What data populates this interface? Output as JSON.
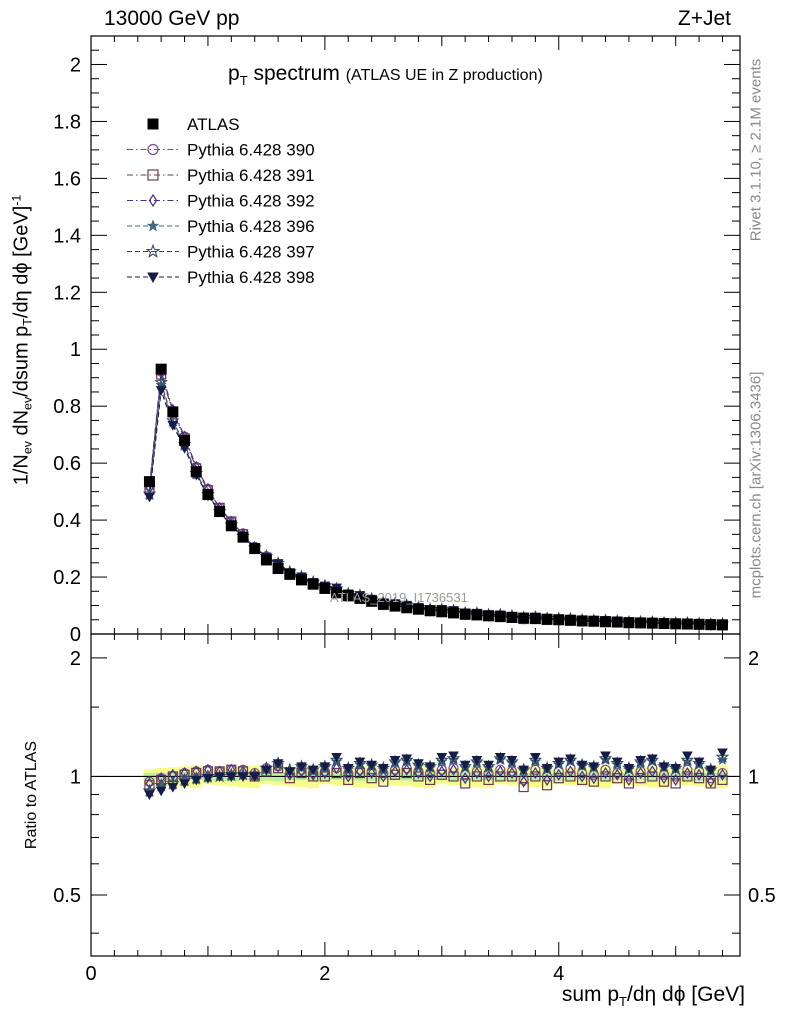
{
  "header": {
    "energy_label": "13000 GeV pp",
    "process_label": "Z+Jet"
  },
  "side": {
    "rivet_label": "Rivet 3.1.10, ≥ 2.1M events",
    "mcplots_label": "mcplots.cern.ch [arXiv:1306.3436]"
  },
  "watermark": "ATLAS_2019_I1736531",
  "title": {
    "p": "p",
    "sub": "T",
    "main": " spectrum",
    "paren": "(ATLAS UE in Z production)"
  },
  "ylabel_top": {
    "a": "1/N",
    "a_sub": "ev",
    "b": " dN",
    "b_sub": "ev",
    "c": "/dsum p",
    "c_sub": "T",
    "d": "/dη dϕ  [GeV]",
    "d_sup": "-1"
  },
  "ylabel_bottom": "Ratio to ATLAS",
  "xlabel": {
    "a": "sum p",
    "a_sub": "T",
    "b": "/dη dϕ [GeV]"
  },
  "colors": {
    "data": "#000000",
    "s390": "#7a4a8f",
    "s391": "#6b3b4b",
    "s392": "#4b2e8f",
    "s396": "#3e6a82",
    "s397": "#2f4a64",
    "s398": "#161c47",
    "band_green": "#b6f0a0",
    "band_yellow": "#f7fc8a"
  },
  "chart_data": {
    "type": "scatter",
    "top_panel": {
      "xlim": [
        0,
        5.55
      ],
      "ylim": [
        0,
        2.1
      ],
      "yticks": [
        0,
        0.2,
        0.4,
        0.6,
        0.8,
        1,
        1.2,
        1.4,
        1.6,
        1.8,
        2
      ],
      "ytick_labels": [
        "0",
        "0.2",
        "0.4",
        "0.6",
        "0.8",
        "1",
        "1.2",
        "1.4",
        "1.6",
        "1.8",
        "2"
      ],
      "legend_position": "top-left"
    },
    "ratio_panel": {
      "xlim": [
        0,
        5.55
      ],
      "ylim": [
        0.35,
        2.3
      ],
      "log_scale": true,
      "yticks": [
        0.5,
        1,
        2
      ],
      "ytick_labels": [
        "0.5",
        "1",
        "2"
      ],
      "reference_line": 1
    },
    "xticks": [
      0,
      2,
      4
    ],
    "xtick_labels": [
      "0",
      "2",
      "4"
    ],
    "x": [
      0.5,
      0.6,
      0.7,
      0.8,
      0.9,
      1.0,
      1.1,
      1.2,
      1.3,
      1.4,
      1.5,
      1.6,
      1.7,
      1.8,
      1.9,
      2.0,
      2.1,
      2.2,
      2.3,
      2.4,
      2.5,
      2.6,
      2.7,
      2.8,
      2.9,
      3.0,
      3.1,
      3.2,
      3.3,
      3.4,
      3.5,
      3.6,
      3.7,
      3.8,
      3.9,
      4.0,
      4.1,
      4.2,
      4.3,
      4.4,
      4.5,
      4.6,
      4.7,
      4.8,
      4.9,
      5.0,
      5.1,
      5.2,
      5.3,
      5.4
    ],
    "data_series": {
      "name": "ATLAS",
      "values": [
        0.535,
        0.93,
        0.78,
        0.68,
        0.57,
        0.49,
        0.43,
        0.38,
        0.34,
        0.3,
        0.26,
        0.23,
        0.21,
        0.19,
        0.175,
        0.16,
        0.145,
        0.135,
        0.125,
        0.115,
        0.105,
        0.098,
        0.092,
        0.087,
        0.082,
        0.078,
        0.074,
        0.07,
        0.067,
        0.064,
        0.061,
        0.058,
        0.056,
        0.054,
        0.052,
        0.05,
        0.048,
        0.046,
        0.045,
        0.043,
        0.042,
        0.04,
        0.039,
        0.038,
        0.037,
        0.036,
        0.035,
        0.034,
        0.033,
        0.032
      ],
      "band_rel_green": 0.02,
      "band_rel_yellow": 0.045
    },
    "series": [
      {
        "name": "Pythia 6.428 390",
        "marker": "circle-open",
        "line": "dashdot",
        "color_key": "s390",
        "ratio": [
          0.97,
          0.99,
          1.0,
          1.02,
          1.03,
          1.04,
          1.03,
          1.04,
          1.04,
          1.02,
          1.05,
          1.06,
          1.02,
          1.04,
          1.02,
          1.03,
          1.05,
          1.02,
          1.04,
          1.03,
          1.02,
          1.04,
          1.05,
          1.03,
          1.02,
          1.04,
          1.05,
          1.01,
          1.03,
          1.02,
          1.04,
          1.03,
          0.98,
          1.04,
          1.0,
          1.03,
          1.05,
          1.02,
          1.01,
          1.04,
          1.02,
          1.0,
          1.03,
          1.05,
          1.01,
          1.0,
          1.04,
          1.03,
          0.99,
          1.02
        ]
      },
      {
        "name": "Pythia 6.428 391",
        "marker": "square-open",
        "line": "dashdot",
        "color_key": "s391",
        "ratio": [
          0.95,
          0.98,
          1.0,
          1.01,
          1.02,
          1.03,
          1.03,
          1.04,
          1.03,
          1.0,
          1.03,
          1.05,
          0.99,
          1.02,
          1.0,
          1.0,
          1.02,
          0.98,
          1.02,
          0.99,
          0.97,
          1.01,
          1.02,
          1.0,
          0.98,
          1.01,
          1.0,
          0.96,
          1.0,
          0.98,
          1.0,
          1.0,
          0.94,
          1.0,
          0.95,
          0.99,
          1.0,
          0.98,
          0.97,
          1.0,
          0.99,
          0.96,
          0.99,
          1.0,
          0.97,
          0.96,
          1.0,
          0.99,
          0.96,
          0.98
        ]
      },
      {
        "name": "Pythia 6.428 392",
        "marker": "diamond-open",
        "line": "dashdot",
        "color_key": "s392",
        "ratio": [
          0.96,
          0.99,
          1.01,
          1.02,
          1.03,
          1.04,
          1.03,
          1.04,
          1.03,
          1.01,
          1.04,
          1.06,
          1.01,
          1.03,
          1.01,
          1.02,
          1.05,
          1.0,
          1.03,
          1.02,
          1.0,
          1.03,
          1.04,
          1.02,
          1.0,
          1.03,
          1.04,
          0.99,
          1.02,
          1.0,
          1.03,
          1.02,
          0.97,
          1.02,
          0.98,
          1.01,
          1.03,
          1.0,
          0.99,
          1.02,
          1.01,
          0.98,
          1.02,
          1.03,
          0.99,
          0.98,
          1.02,
          1.01,
          0.97,
          1.01
        ]
      },
      {
        "name": "Pythia 6.428 396",
        "marker": "star-filled",
        "line": "dashed",
        "color_key": "s396",
        "ratio": [
          0.91,
          0.94,
          0.95,
          0.97,
          0.98,
          0.99,
          1.0,
          1.0,
          1.01,
          1.0,
          1.04,
          1.07,
          1.03,
          1.05,
          1.03,
          1.05,
          1.09,
          1.04,
          1.07,
          1.06,
          1.04,
          1.08,
          1.09,
          1.06,
          1.05,
          1.09,
          1.1,
          1.05,
          1.08,
          1.05,
          1.1,
          1.08,
          1.03,
          1.09,
          1.04,
          1.07,
          1.09,
          1.06,
          1.05,
          1.1,
          1.07,
          1.04,
          1.08,
          1.09,
          1.05,
          1.04,
          1.09,
          1.07,
          1.03,
          1.1
        ]
      },
      {
        "name": "Pythia 6.428 397",
        "marker": "star-open",
        "line": "dashed",
        "color_key": "s397",
        "ratio": [
          0.92,
          0.95,
          0.96,
          0.98,
          0.99,
          1.0,
          1.0,
          1.01,
          1.01,
          1.01,
          1.05,
          1.08,
          1.04,
          1.06,
          1.04,
          1.06,
          1.1,
          1.05,
          1.08,
          1.07,
          1.05,
          1.09,
          1.1,
          1.07,
          1.06,
          1.1,
          1.11,
          1.06,
          1.09,
          1.06,
          1.11,
          1.09,
          1.04,
          1.1,
          1.05,
          1.08,
          1.1,
          1.07,
          1.06,
          1.11,
          1.08,
          1.05,
          1.09,
          1.1,
          1.06,
          1.05,
          1.1,
          1.08,
          1.04,
          1.12
        ]
      },
      {
        "name": "Pythia 6.428 398",
        "marker": "triangle-down-filled",
        "line": "dashed",
        "color_key": "s398",
        "ratio": [
          0.9,
          0.92,
          0.94,
          0.96,
          0.98,
          0.99,
          1.0,
          1.0,
          1.0,
          1.0,
          1.04,
          1.08,
          1.03,
          1.06,
          1.04,
          1.06,
          1.12,
          1.05,
          1.09,
          1.07,
          1.05,
          1.1,
          1.11,
          1.08,
          1.06,
          1.12,
          1.13,
          1.07,
          1.1,
          1.07,
          1.12,
          1.1,
          1.04,
          1.12,
          1.05,
          1.09,
          1.11,
          1.07,
          1.06,
          1.13,
          1.09,
          1.05,
          1.1,
          1.11,
          1.06,
          1.05,
          1.13,
          1.09,
          1.04,
          1.15
        ]
      }
    ]
  }
}
